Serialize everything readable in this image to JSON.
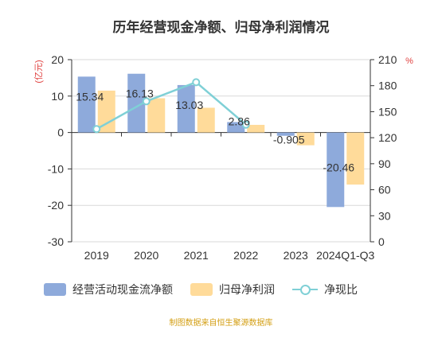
{
  "chart_data": {
    "type": "bar",
    "title": "历年经营现金净额、归母净利润情况",
    "left_axis_unit": "(亿元)",
    "right_axis_unit": "%",
    "categories": [
      "2019",
      "2020",
      "2021",
      "2022",
      "2023",
      "2024Q1-Q3"
    ],
    "ylim_left": [
      -30,
      20
    ],
    "yticks_left": [
      20,
      10,
      0,
      -10,
      -20,
      -30
    ],
    "ylim_right": [
      0,
      210
    ],
    "yticks_right": [
      210,
      180,
      150,
      120,
      90,
      60,
      30,
      0
    ],
    "grid": true,
    "legend_position": "bottom",
    "series": [
      {
        "name": "经营活动现金流净额",
        "kind": "bar",
        "axis": "left",
        "color": "#8eaadb",
        "values": [
          15.34,
          16.13,
          13.03,
          2.86,
          -0.905,
          -20.46
        ],
        "labels": [
          "15.34",
          "16.13",
          "13.03",
          "2.86",
          "-0.905",
          "-20.46"
        ]
      },
      {
        "name": "归母净利润",
        "kind": "bar",
        "axis": "left",
        "color": "#ffdb9a",
        "values": [
          11.5,
          9.4,
          6.8,
          2.1,
          -3.5,
          -14.3
        ]
      },
      {
        "name": "净现比",
        "kind": "line",
        "axis": "right",
        "color": "#7fd0d6",
        "values": [
          130,
          162,
          184,
          135,
          null,
          null
        ]
      }
    ]
  },
  "source": "制图数据来自恒生聚源数据库"
}
